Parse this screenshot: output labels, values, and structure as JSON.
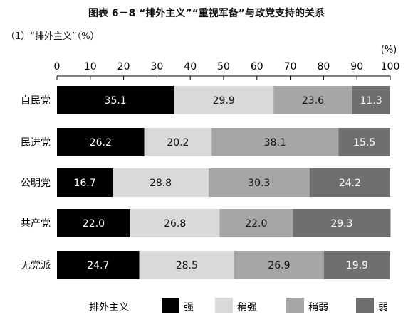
{
  "header": {
    "title": "图表 6－8 “排外主义”“重视军备”与政党支持的关系",
    "subtitle": "（1）“排外主义”（%）"
  },
  "chart_data": {
    "type": "bar",
    "orientation": "horizontal",
    "stacked": true,
    "unit_label": "(%)",
    "xlim": [
      0,
      100
    ],
    "xticks": [
      0,
      10,
      20,
      30,
      40,
      50,
      60,
      70,
      80,
      90,
      100
    ],
    "categories": [
      "自民党",
      "民进党",
      "公明党",
      "共产党",
      "无党派"
    ],
    "series": [
      {
        "name": "强",
        "color": "#000000",
        "label_color": "#ffffff",
        "values": [
          35.1,
          26.2,
          16.7,
          22.0,
          24.7
        ]
      },
      {
        "name": "稍强",
        "color": "#d9d9d9",
        "label_color": "#111111",
        "values": [
          29.9,
          20.2,
          28.8,
          26.8,
          28.5
        ]
      },
      {
        "name": "稍弱",
        "color": "#a6a6a6",
        "label_color": "#111111",
        "values": [
          23.6,
          38.1,
          30.3,
          22.0,
          26.9
        ]
      },
      {
        "name": "弱",
        "color": "#6f6f6f",
        "label_color": "#ffffff",
        "values": [
          11.3,
          15.5,
          24.2,
          29.3,
          19.9
        ]
      }
    ],
    "legend_title": "排外主义",
    "legend_position": "bottom"
  }
}
